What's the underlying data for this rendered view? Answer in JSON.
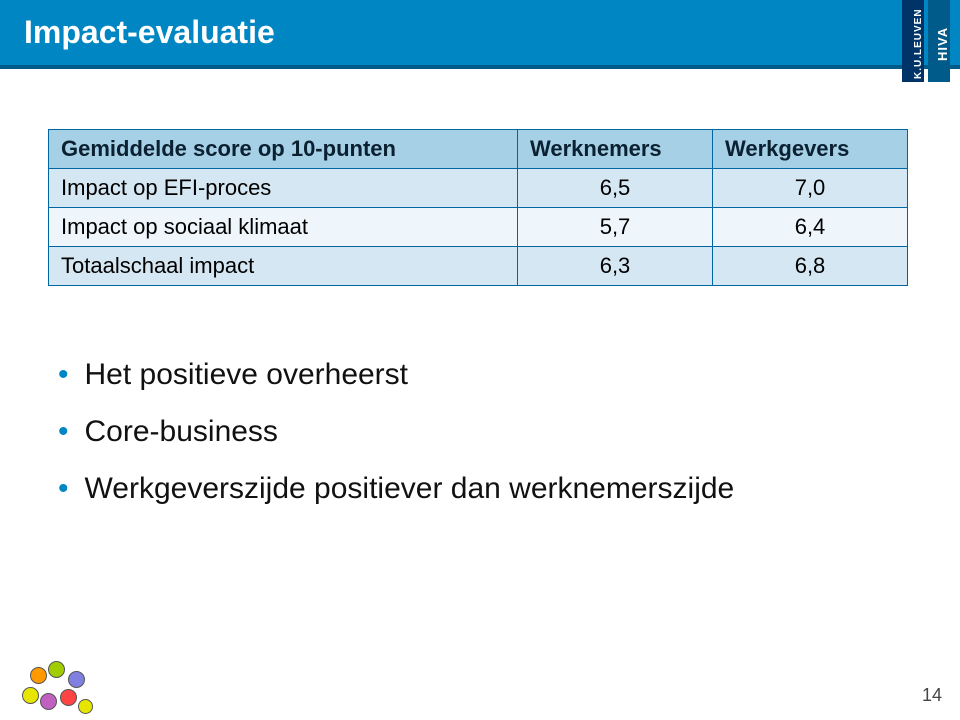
{
  "slide": {
    "title": "Impact-evaluatie",
    "page_number": "14",
    "accent_color": "#0086c2",
    "accent_dark": "#005b8a"
  },
  "logos": {
    "left_text": "K.U.LEUVEN",
    "right_text": "HIVA"
  },
  "table": {
    "header_bg": "#a6d0e6",
    "row_odd_bg": "#d5e7f2",
    "row_even_bg": "#eef6fb",
    "border_color": "#0066a1",
    "columns": [
      "Gemiddelde score op 10-punten",
      "Werknemers",
      "Werkgevers"
    ],
    "rows": [
      {
        "label": "Impact op EFI-proces",
        "werknemers": "6,5",
        "werkgevers": "7,0"
      },
      {
        "label": "Impact op sociaal klimaat",
        "werknemers": "5,7",
        "werkgevers": "6,4"
      },
      {
        "label": "Totaalschaal impact",
        "werknemers": "6,3",
        "werkgevers": "6,8"
      }
    ]
  },
  "bullets": {
    "items": [
      "Het positieve overheerst",
      "Core-business",
      "Werkgeverszijde positiever dan werknemerszijde"
    ]
  }
}
